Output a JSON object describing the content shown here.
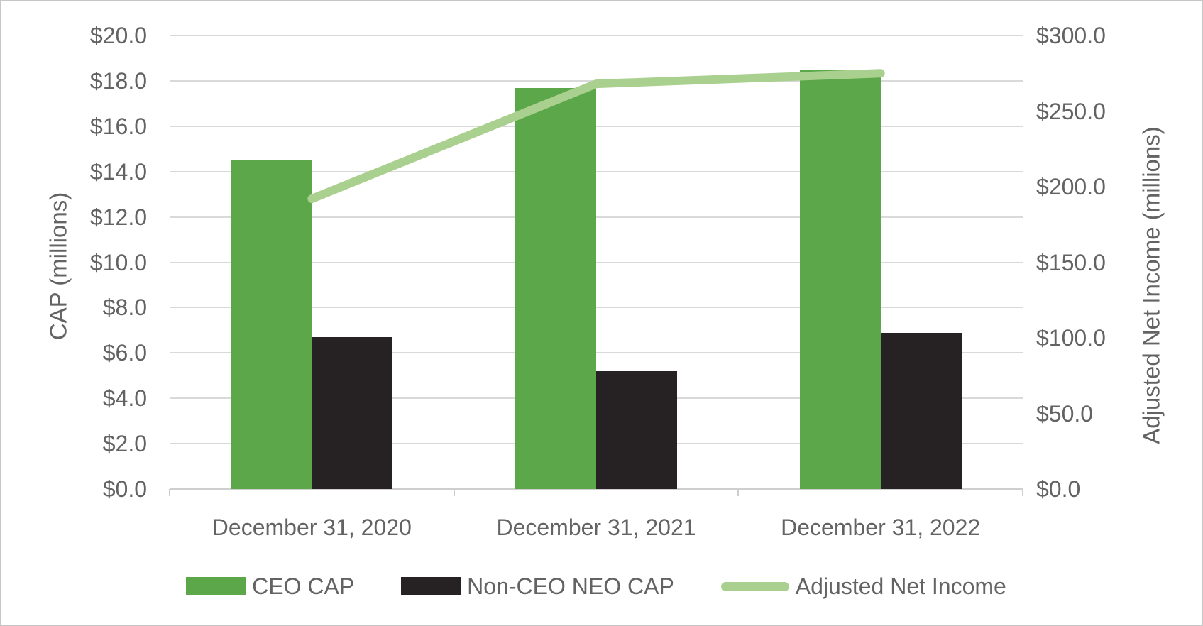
{
  "chart_data": {
    "type": "bar",
    "subtype": "grouped-bars-with-line-overlay",
    "categories": [
      "December 31, 2020",
      "December 31, 2021",
      "December 31, 2022"
    ],
    "series": [
      {
        "name": "CEO CAP",
        "type": "bar",
        "axis": "left",
        "color": "#5ca74a",
        "values": [
          14.5,
          17.7,
          18.5
        ]
      },
      {
        "name": "Non-CEO NEO CAP",
        "type": "bar",
        "axis": "left",
        "color": "#262123",
        "values": [
          6.7,
          5.2,
          6.9
        ]
      },
      {
        "name": "Adjusted Net Income",
        "type": "line",
        "axis": "right",
        "color": "#a9d08e",
        "values": [
          192,
          268,
          275
        ]
      }
    ],
    "left_axis": {
      "title": "CAP (millions)",
      "min": 0,
      "max": 20,
      "step": 2,
      "ticks": [
        "$0.0",
        "$2.0",
        "$4.0",
        "$6.0",
        "$8.0",
        "$10.0",
        "$12.0",
        "$14.0",
        "$16.0",
        "$18.0",
        "$20.0"
      ]
    },
    "right_axis": {
      "title": "Adjusted Net Income (millions)",
      "min": 0,
      "max": 300,
      "step": 50,
      "ticks": [
        "$0.0",
        "$50.0",
        "$100.0",
        "$150.0",
        "$200.0",
        "$250.0",
        "$300.0"
      ]
    },
    "grid": true,
    "legend_position": "bottom"
  },
  "colors": {
    "text": "#636363",
    "gridline": "#d9d9d9",
    "axis_line": "#d0cece",
    "frame_border": "#c6c6c6",
    "background": "#ffffff"
  }
}
